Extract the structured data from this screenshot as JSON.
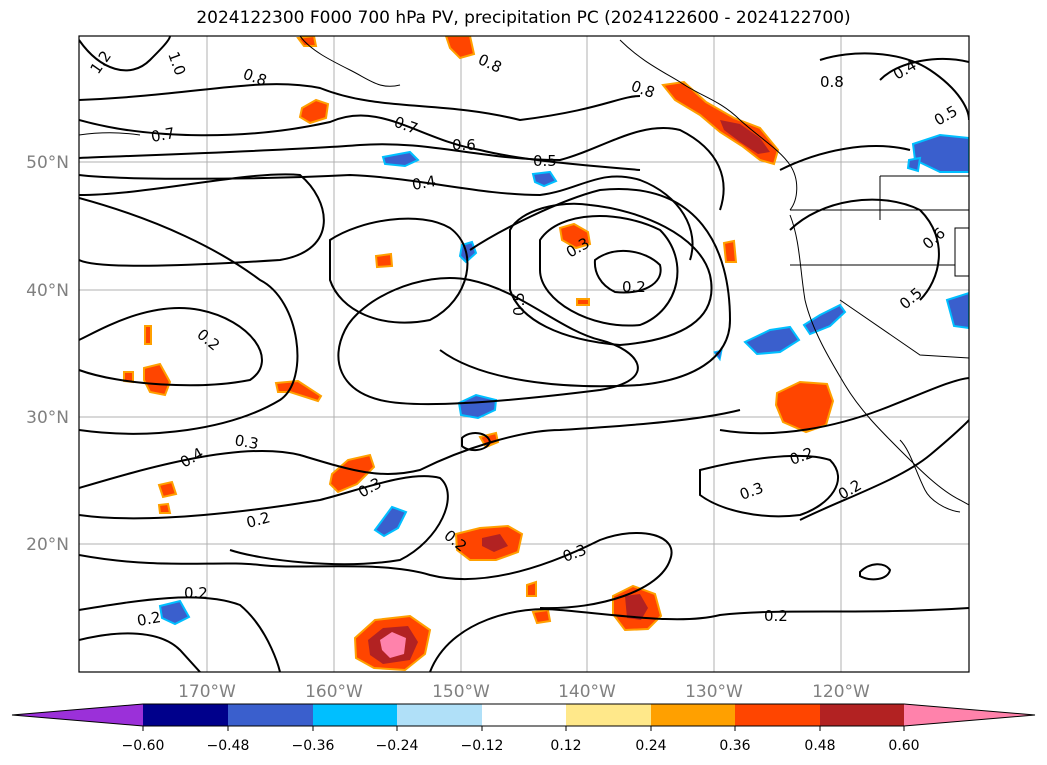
{
  "title": "2024122300 F000 700 hPa PV, precipitation PC (2024122600 - 2024122700)",
  "lat_labels": [
    "50°N",
    "40°N",
    "30°N",
    "20°N"
  ],
  "lon_labels": [
    "170°W",
    "160°W",
    "150°W",
    "140°W",
    "130°W",
    "120°W"
  ],
  "contour_labels": [
    "1.2",
    "1.0",
    "0.8",
    "0.8",
    "0.8",
    "0.8",
    "0.7",
    "0.7",
    "0.6",
    "0.5",
    "0.4",
    "0.4",
    "0.5",
    "0.3",
    "0.2",
    "0.5",
    "0.6",
    "0.5",
    "0.2",
    "0.3",
    "0.4",
    "0.3",
    "0.2",
    "0.2",
    "0.2",
    "0.3",
    "0.2",
    "0.3",
    "0.2",
    "0.2",
    "0.2"
  ],
  "colorbar": {
    "colors": [
      "#9b30d9",
      "#00008b",
      "#3a5fcd",
      "#00bfff",
      "#b0e0f8",
      "#ffffff",
      "#ffe88a",
      "#ffa000",
      "#ff4500",
      "#b22222",
      "#ff82ab"
    ],
    "tick_labels": [
      "−0.60",
      "−0.48",
      "−0.36",
      "−0.24",
      "−0.12",
      "0.12",
      "0.24",
      "0.36",
      "0.48",
      "0.60"
    ]
  }
}
